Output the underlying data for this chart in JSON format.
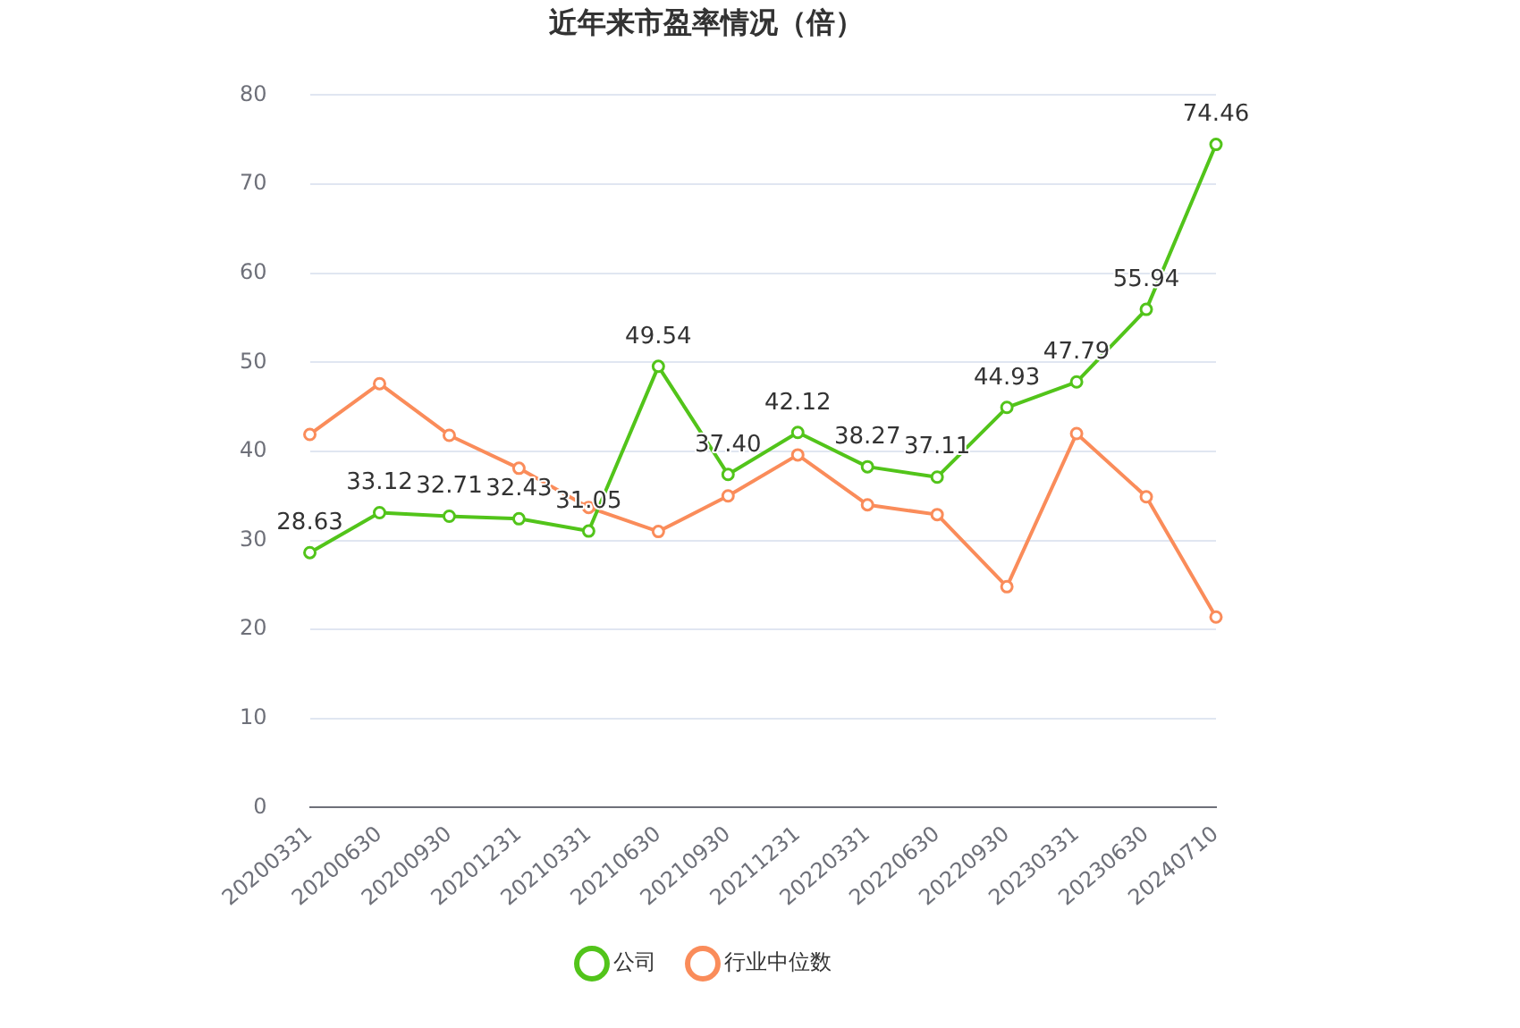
{
  "chart_data": {
    "type": "line",
    "title": "近年来市盈率情况（倍）",
    "categories": [
      "20200331",
      "20200630",
      "20200930",
      "20201231",
      "20210331",
      "20210630",
      "20210930",
      "20211231",
      "20220331",
      "20220630",
      "20220930",
      "20230331",
      "20230630",
      "20240710"
    ],
    "series": [
      {
        "name": "公司",
        "color": "#52c41a",
        "values": [
          28.63,
          33.12,
          32.71,
          32.43,
          31.05,
          49.54,
          37.4,
          42.12,
          38.27,
          37.11,
          44.93,
          47.79,
          55.94,
          74.46
        ],
        "value_labels": [
          "28.63",
          "33.12",
          "32.71",
          "32.43",
          "31.05",
          "49.54",
          "37.40",
          "42.12",
          "38.27",
          "37.11",
          "44.93",
          "47.79",
          "55.94",
          "74.46"
        ]
      },
      {
        "name": "行业中位数",
        "color": "#fa8c5a",
        "values": [
          41.9,
          47.6,
          41.8,
          38.1,
          33.7,
          31.0,
          35.0,
          39.6,
          34.0,
          32.9,
          24.8,
          42.0,
          34.9,
          21.4
        ]
      }
    ],
    "ylim": [
      0,
      80
    ],
    "yticks": [
      0,
      10,
      20,
      30,
      40,
      50,
      60,
      70,
      80
    ],
    "grid": "y",
    "legend": "bottom",
    "marker": "circle",
    "line_style": "solid"
  }
}
